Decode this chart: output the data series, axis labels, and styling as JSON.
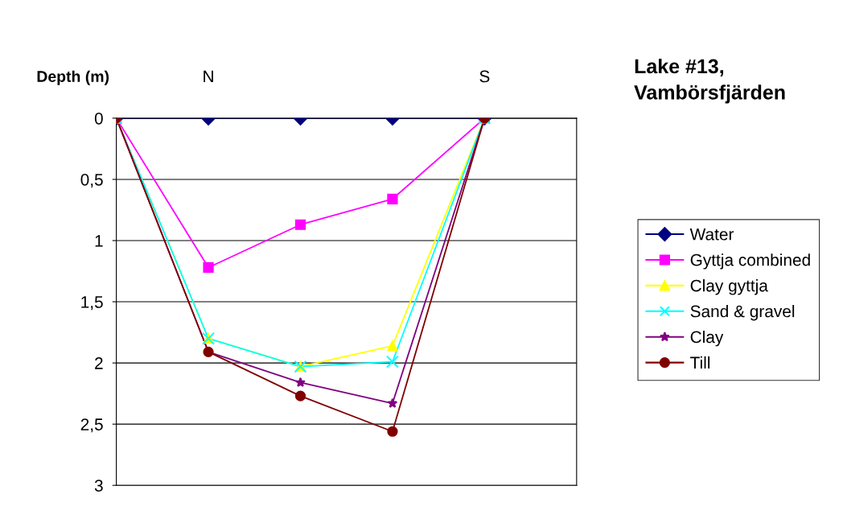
{
  "chart_data": {
    "type": "line",
    "title": "Lake #13,\nVambörsfjärden",
    "ylabel": "Depth (m)",
    "annotations": [
      "N",
      "S"
    ],
    "categories": [
      null,
      null,
      null,
      null,
      null
    ],
    "ylim": [
      3,
      0
    ],
    "yticks": [
      0,
      {
        "value": 0.5,
        "label": "0,5"
      },
      1,
      {
        "value": 1.5,
        "label": "1,5"
      },
      2,
      {
        "value": 2.5,
        "label": "2,5"
      },
      3
    ],
    "tick_labels": "y",
    "grid": "y",
    "legend": "right",
    "series": [
      {
        "name": "Water",
        "color": "#000080",
        "marker": "diamond",
        "values": [
          0,
          0,
          0,
          0,
          0
        ]
      },
      {
        "name": "Gyttja combined",
        "color": "#ff00ff",
        "marker": "square",
        "values": [
          0,
          1.22,
          0.87,
          0.66,
          0
        ]
      },
      {
        "name": "Clay gyttja",
        "color": "#ffff00",
        "marker": "triangle",
        "values": [
          0,
          1.8,
          2.03,
          1.86,
          0
        ]
      },
      {
        "name": "Sand & gravel",
        "color": "#00ffff",
        "marker": "cross",
        "values": [
          0,
          1.8,
          2.03,
          1.99,
          0
        ]
      },
      {
        "name": "Clay",
        "color": "#800080",
        "marker": "star",
        "values": [
          0,
          1.91,
          2.16,
          2.33,
          0
        ]
      },
      {
        "name": "Till",
        "color": "#800000",
        "marker": "circle",
        "values": [
          0,
          1.91,
          2.27,
          2.56,
          0
        ]
      }
    ]
  }
}
